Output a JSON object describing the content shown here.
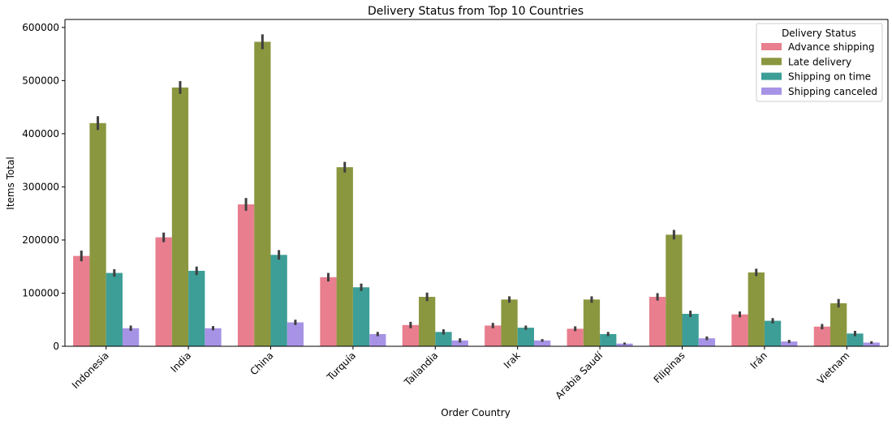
{
  "chart_data": {
    "type": "bar",
    "title": "Delivery Status from Top 10 Countries",
    "xlabel": "Order Country",
    "ylabel": "Items Total",
    "ylim": [
      0,
      615000
    ],
    "yticks": [
      0,
      100000,
      200000,
      300000,
      400000,
      500000,
      600000
    ],
    "grid": false,
    "legend": {
      "title": "Delivery Status",
      "placement": "top-right"
    },
    "categories": [
      "Indonesia",
      "India",
      "China",
      "Turquía",
      "Tailandia",
      "Irak",
      "Arabia Saudí",
      "Filipinas",
      "Irán",
      "Vietnam"
    ],
    "series": [
      {
        "name": "Advance shipping",
        "color": "#e87e8e",
        "values": [
          170000,
          205000,
          267000,
          130000,
          40000,
          39000,
          33000,
          93000,
          60000,
          37000
        ],
        "err": [
          10000,
          9000,
          12000,
          8000,
          6000,
          5000,
          4500,
          7000,
          5500,
          5000
        ]
      },
      {
        "name": "Late delivery",
        "color": "#8b973f",
        "values": [
          420000,
          487000,
          573000,
          337000,
          93000,
          88000,
          88000,
          210000,
          139000,
          81000
        ],
        "err": [
          13000,
          12000,
          14000,
          10000,
          8000,
          6000,
          6000,
          9000,
          7000,
          8000
        ]
      },
      {
        "name": "Shipping on time",
        "color": "#3d9e97",
        "values": [
          138000,
          142000,
          172000,
          111000,
          27000,
          35000,
          23000,
          61000,
          48000,
          24000
        ],
        "err": [
          7000,
          8000,
          9000,
          7000,
          5000,
          4000,
          4000,
          6000,
          5000,
          5000
        ]
      },
      {
        "name": "Shipping canceled",
        "color": "#a793e6",
        "values": [
          34000,
          34000,
          45000,
          23000,
          11000,
          11000,
          5000,
          15000,
          9000,
          7000
        ],
        "err": [
          5000,
          4000,
          5000,
          4000,
          4000,
          2500,
          2000,
          3500,
          3000,
          2500
        ]
      }
    ]
  }
}
